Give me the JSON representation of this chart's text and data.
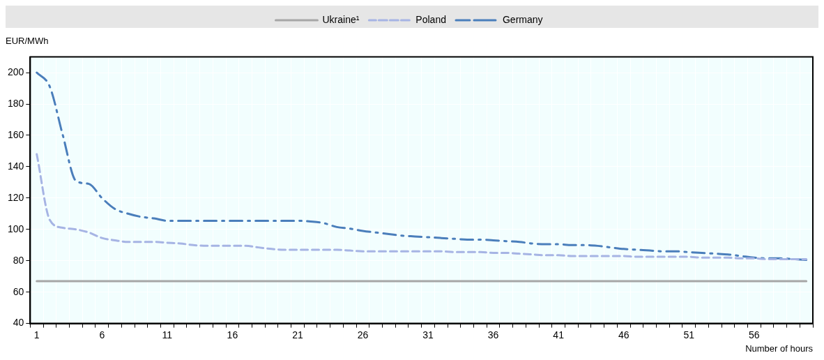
{
  "chart_data": {
    "type": "line",
    "ylabel": "EUR/MWh",
    "xlabel": "Number of hours",
    "categories": [
      "1",
      null,
      null,
      null,
      null,
      "6",
      null,
      null,
      null,
      null,
      "11",
      null,
      null,
      null,
      null,
      "16",
      null,
      null,
      null,
      null,
      "21",
      null,
      null,
      null,
      null,
      "26",
      null,
      null,
      null,
      null,
      "31",
      null,
      null,
      null,
      null,
      "36",
      null,
      null,
      null,
      null,
      "41",
      null,
      null,
      null,
      null,
      "46",
      null,
      null,
      null,
      null,
      "51",
      null,
      null,
      null,
      null,
      "56",
      null,
      null,
      null,
      null
    ],
    "ylim": [
      40,
      210
    ],
    "yticks": [
      40,
      60,
      80,
      100,
      120,
      140,
      160,
      180,
      200
    ],
    "grid": true,
    "legend": "top",
    "marker": "none",
    "series": [
      {
        "name": "Ukraine¹",
        "color": "#a6a6a6",
        "line_style": "solid",
        "values": [
          67,
          67,
          67,
          67,
          67,
          67,
          67,
          67,
          67,
          67,
          67,
          67,
          67,
          67,
          67,
          67,
          67,
          67,
          67,
          67,
          67,
          67,
          67,
          67,
          67,
          67,
          67,
          67,
          67,
          67,
          67,
          67,
          67,
          67,
          67,
          67,
          67,
          67,
          67,
          67,
          67,
          67,
          67,
          67,
          67,
          67,
          67,
          67,
          67,
          67,
          67,
          67,
          67,
          67,
          67,
          67,
          67,
          67,
          67,
          67
        ]
      },
      {
        "name": "Poland",
        "color": "#a6b4e4",
        "line_style": "dashed",
        "values": [
          148,
          106,
          101,
          100,
          98,
          94.5,
          93,
          92,
          92,
          92,
          91.5,
          91,
          90,
          89.5,
          89.5,
          89.5,
          89.5,
          88.5,
          87.5,
          87,
          87,
          87,
          87,
          87,
          86.5,
          86,
          86,
          86,
          86,
          86,
          86,
          86,
          85.5,
          85.5,
          85.5,
          85,
          85,
          84.5,
          84,
          83.5,
          83.5,
          83,
          83,
          83,
          83,
          83,
          82.5,
          82.5,
          82.5,
          82.5,
          82.5,
          82,
          82,
          82,
          81.5,
          81.5,
          81,
          81,
          81,
          81
        ]
      },
      {
        "name": "Germany",
        "color": "#4a7ebb",
        "line_style": "dashdot",
        "values": [
          200,
          191,
          160,
          131,
          129,
          120,
          113,
          110,
          108,
          107,
          105.5,
          105.5,
          105.5,
          105.5,
          105.5,
          105.5,
          105.5,
          105.5,
          105.5,
          105.5,
          105.5,
          105,
          104,
          101.5,
          100.5,
          99,
          98,
          97,
          96,
          95.5,
          95,
          94.5,
          94,
          93.5,
          93.5,
          93,
          92.5,
          92,
          91,
          90.5,
          90.5,
          90,
          90,
          89.5,
          88.5,
          87.5,
          87,
          86.5,
          86,
          86,
          85.5,
          85,
          84.5,
          84,
          83,
          82,
          81.5,
          81.5,
          81,
          80.5
        ]
      }
    ]
  }
}
